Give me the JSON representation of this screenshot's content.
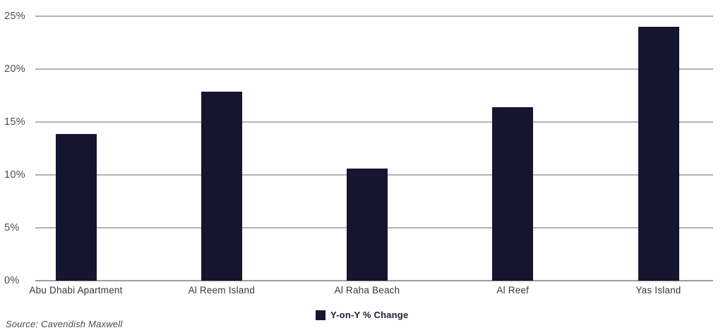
{
  "page": {
    "background": "#ffffff"
  },
  "footer": {
    "source": "Source: Cavendish Maxwell"
  },
  "chart_data": {
    "type": "bar",
    "title": "",
    "xlabel": "",
    "ylabel": "",
    "categories": [
      "Abu Dhabi Apartment",
      "Al Reem Island",
      "Al Raha Beach",
      "Al Reef",
      "Yas Island"
    ],
    "values": [
      13.9,
      17.9,
      10.6,
      16.4,
      24.0
    ],
    "series_name": "Y-on-Y % Change",
    "ylim": [
      0,
      25
    ],
    "yticks": [
      {
        "value": 0,
        "label": "0%"
      },
      {
        "value": 5,
        "label": "5%"
      },
      {
        "value": 10,
        "label": "10%"
      },
      {
        "value": 15,
        "label": "15%"
      },
      {
        "value": 20,
        "label": "20%"
      },
      {
        "value": 25,
        "label": "25%"
      }
    ],
    "grid": true,
    "legend_position": "bottom-center",
    "legend": {
      "label": "Y-on-Y % Change",
      "swatch": "square"
    },
    "colors": {
      "bar": "#151530",
      "gridline": "#b3b3b3",
      "axis_line": "#9e9e9e",
      "ytick_text": "#4d4d4d",
      "xtick_text": "#363640",
      "legend_text": "#1e1e38",
      "source_text": "#4a4a4a"
    }
  }
}
